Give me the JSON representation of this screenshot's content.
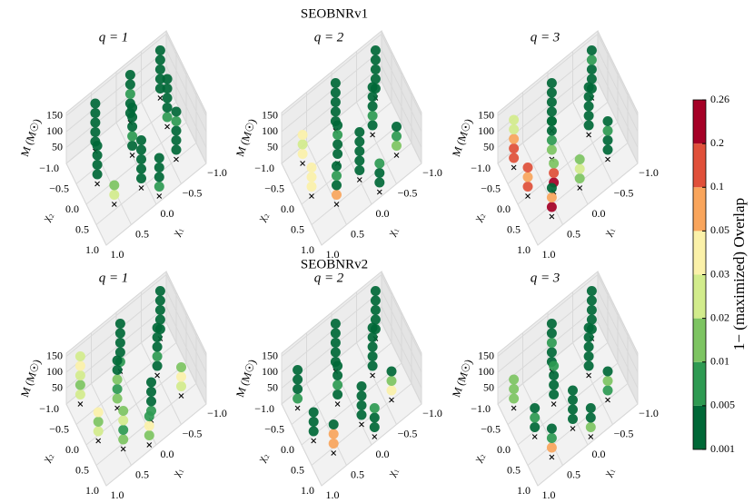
{
  "chart_data": {
    "type": "scatter3d",
    "suptitles": [
      "SEOBNRv1",
      "SEOBNRv2"
    ],
    "axes": {
      "xlabel": "χ₁",
      "ylabel": "χ₂",
      "zlabel": "M (M☉)",
      "xlim": [
        -1,
        1
      ],
      "ylim": [
        -1,
        1
      ],
      "zlim": [
        0,
        160
      ],
      "xticks": [
        {
          "value": -1,
          "label": "−1.0"
        },
        {
          "value": -0.5,
          "label": "−0.5"
        },
        {
          "value": 0,
          "label": "0.0"
        },
        0.5,
        {
          "value": 1,
          "label": "1.0"
        }
      ],
      "yticks": [
        {
          "value": -1,
          "label": "−1.0"
        },
        {
          "value": -0.5,
          "label": "−0.5"
        },
        {
          "value": 0,
          "label": "0.0"
        },
        0.5,
        {
          "value": 1,
          "label": "1.0"
        }
      ],
      "zticks": [
        50,
        100,
        150
      ],
      "grid": true
    },
    "M": [
      30,
      60,
      90,
      120,
      150
    ],
    "panels": [
      {
        "title": "q = 1",
        "columns": [
          {
            "chi1": -0.8,
            "chi2": -0.8,
            "overlap": [
              0.003,
              0.003,
              0.003,
              0.003,
              0.003
            ]
          },
          {
            "chi1": -0.2,
            "chi2": -0.8,
            "overlap": [
              0.003,
              0.003,
              0.007,
              0.003,
              0.003
            ]
          },
          {
            "chi1": 0.5,
            "chi2": -0.8,
            "overlap": [
              0.003,
              0.003,
              0.003,
              0.003,
              0.003
            ]
          },
          {
            "chi1": -0.7,
            "chi2": -0.2,
            "overlap": [
              0.007,
              0.003,
              0.003,
              0.003,
              0.003
            ]
          },
          {
            "chi1": 0,
            "chi2": -0.2,
            "overlap": [
              0.003,
              0.007,
              0.003,
              0.003,
              0.003
            ]
          },
          {
            "chi1": 0.7,
            "chi2": -0.2,
            "overlap": [
              0.003,
              0.003,
              0.003,
              0.003,
              null
            ]
          },
          {
            "chi1": -0.6,
            "chi2": 0.5,
            "overlap": [
              0.003,
              0.003,
              0.003,
              0.007,
              0.003
            ]
          },
          {
            "chi1": 0.1,
            "chi2": 0.5,
            "overlap": [
              0.003,
              0.003,
              0.003,
              0.003,
              0.003
            ]
          },
          {
            "chi1": 0.6,
            "chi2": 0.4,
            "overlap": [
              0.025,
              0.015,
              null,
              null,
              null
            ]
          },
          {
            "chi1": -0.1,
            "chi2": 0.9,
            "overlap": [
              0.007,
              0.003,
              0.003,
              0.003,
              null
            ]
          }
        ]
      },
      {
        "title": "q = 2",
        "columns": [
          {
            "chi1": -0.8,
            "chi2": -0.8,
            "overlap": [
              0.003,
              0.003,
              0.003,
              0.003,
              0.003
            ]
          },
          {
            "chi1": 0,
            "chi2": -0.8,
            "overlap": [
              0.003,
              0.003,
              0.003,
              0.003,
              0.003
            ]
          },
          {
            "chi1": 0.7,
            "chi2": -0.7,
            "overlap": [
              0.04,
              0.025,
              0.04,
              null,
              null
            ]
          },
          {
            "chi1": -0.5,
            "chi2": -0.2,
            "overlap": [
              0.003,
              0.007,
              0.003,
              0.003,
              0.003
            ]
          },
          {
            "chi1": 0.2,
            "chi2": -0.2,
            "overlap": [
              0.003,
              0.003,
              0.007,
              0.003,
              null
            ]
          },
          {
            "chi1": 0.8,
            "chi2": 0,
            "overlap": [
              0.04,
              0.04,
              0.04,
              null,
              null
            ]
          },
          {
            "chi1": -0.7,
            "chi2": 0.5,
            "overlap": [
              0.015,
              0.007,
              0.003,
              null,
              null
            ]
          },
          {
            "chi1": 0,
            "chi2": 0.4,
            "overlap": [
              0.003,
              0.003,
              0.003,
              0.003,
              0.003
            ]
          },
          {
            "chi1": 0.5,
            "chi2": 0.5,
            "overlap": [
              0.07,
              0.003,
              0.007,
              0.003,
              null
            ]
          },
          {
            "chi1": -0.2,
            "chi2": 0.9,
            "overlap": [
              0.003,
              0.003,
              0.007,
              null,
              null
            ]
          }
        ]
      },
      {
        "title": "q = 3",
        "columns": [
          {
            "chi1": -0.8,
            "chi2": -0.8,
            "overlap": [
              0.003,
              0.003,
              0.003,
              0.007,
              0.003
            ]
          },
          {
            "chi1": 0,
            "chi2": -0.8,
            "overlap": [
              0.007,
              0.003,
              0.003,
              0.003,
              0.003
            ]
          },
          {
            "chi1": 0.8,
            "chi2": -0.7,
            "overlap": [
              0.15,
              0.15,
              0.07,
              0.025,
              0.025
            ]
          },
          {
            "chi1": -0.5,
            "chi2": -0.2,
            "overlap": [
              0.003,
              0.003,
              0.003,
              0.003,
              0.003
            ]
          },
          {
            "chi1": 0.2,
            "chi2": -0.3,
            "overlap": [
              0.015,
              0.007,
              0.003,
              0.003,
              null
            ]
          },
          {
            "chi1": 0.8,
            "chi2": 0,
            "overlap": [
              0.15,
              0.07,
              0.15,
              null,
              null
            ]
          },
          {
            "chi1": 0.4,
            "chi2": 0.3,
            "overlap": [
              0.23,
              0.15,
              0.015,
              null,
              null
            ]
          },
          {
            "chi1": -0.6,
            "chi2": 0.5,
            "overlap": [
              0.003,
              0.003,
              0.007,
              0.003,
              null
            ]
          },
          {
            "chi1": 0,
            "chi2": 0.6,
            "overlap": [
              0.015,
              0.025,
              0.015,
              null,
              null
            ]
          },
          {
            "chi1": 0.6,
            "chi2": 0.7,
            "overlap": [
              0.23,
              0.07,
              0.003,
              null,
              null
            ]
          }
        ]
      },
      {
        "title": "q = 1",
        "columns": [
          {
            "chi1": -0.8,
            "chi2": -0.8,
            "overlap": [
              0.003,
              0.003,
              0.003,
              0.003,
              0.003
            ]
          },
          {
            "chi1": 0,
            "chi2": -0.8,
            "overlap": [
              0.007,
              0.003,
              0.003,
              0.003,
              0.003
            ]
          },
          {
            "chi1": 0.8,
            "chi2": -0.8,
            "overlap": [
              0.025,
              0.015,
              0.025,
              0.04,
              0.025
            ]
          },
          {
            "chi1": -0.5,
            "chi2": -0.2,
            "overlap": [
              0.003,
              0.007,
              0.003,
              0.003,
              0.003
            ]
          },
          {
            "chi1": 0.3,
            "chi2": -0.2,
            "overlap": [
              0.015,
              0.007,
              0.015,
              0.003,
              0.003
            ]
          },
          {
            "chi1": 0.8,
            "chi2": 0.1,
            "overlap": [
              0.025,
              0.015,
              0.04,
              null,
              null
            ]
          },
          {
            "chi1": -0.7,
            "chi2": 0.5,
            "overlap": [
              0.025,
              0.04,
              0.015,
              null,
              null
            ]
          },
          {
            "chi1": -0.1,
            "chi2": 0.5,
            "overlap": [
              0.007,
              0.003,
              0.003,
              0.003,
              null
            ]
          },
          {
            "chi1": 0.5,
            "chi2": 0.6,
            "overlap": [
              0.015,
              0.007,
              0.025,
              0.015,
              null
            ]
          },
          {
            "chi1": 0.1,
            "chi2": 0.9,
            "overlap": [
              0.015,
              0.04,
              0.007,
              null,
              null
            ]
          }
        ]
      },
      {
        "title": "q = 2",
        "columns": [
          {
            "chi1": -0.8,
            "chi2": -0.8,
            "overlap": [
              0.003,
              0.003,
              0.003,
              0.003,
              0.003
            ]
          },
          {
            "chi1": 0,
            "chi2": -0.8,
            "overlap": [
              0.003,
              0.003,
              0.003,
              0.003,
              0.003
            ]
          },
          {
            "chi1": 0.8,
            "chi2": -0.7,
            "overlap": [
              0.007,
              0.003,
              0.003,
              0.003,
              null
            ]
          },
          {
            "chi1": -0.5,
            "chi2": -0.2,
            "overlap": [
              0.003,
              0.003,
              0.003,
              0.003,
              0.003
            ]
          },
          {
            "chi1": 0.2,
            "chi2": -0.2,
            "overlap": [
              0.003,
              0.007,
              0.003,
              0.003,
              null
            ]
          },
          {
            "chi1": 0.8,
            "chi2": 0.1,
            "overlap": [
              0.003,
              0.003,
              0.003,
              null,
              null
            ]
          },
          {
            "chi1": -0.6,
            "chi2": 0.5,
            "overlap": [
              0.04,
              0.015,
              0.003,
              null,
              null
            ]
          },
          {
            "chi1": 0,
            "chi2": 0.5,
            "overlap": [
              0.003,
              0.003,
              0.003,
              0.003,
              null
            ]
          },
          {
            "chi1": 0.6,
            "chi2": 0.6,
            "overlap": [
              0.07,
              0.07,
              0.003,
              null,
              null
            ]
          },
          {
            "chi1": -0.1,
            "chi2": 0.9,
            "overlap": [
              0.003,
              0.003,
              0.007,
              null,
              null
            ]
          }
        ]
      },
      {
        "title": "q = 3",
        "columns": [
          {
            "chi1": -0.8,
            "chi2": -0.8,
            "overlap": [
              0.003,
              0.003,
              0.003,
              0.003,
              0.003
            ]
          },
          {
            "chi1": 0,
            "chi2": -0.8,
            "overlap": [
              0.003,
              0.003,
              0.007,
              0.003,
              0.003
            ]
          },
          {
            "chi1": 0.8,
            "chi2": -0.7,
            "overlap": [
              0.015,
              0.015,
              0.015,
              null,
              null
            ]
          },
          {
            "chi1": -0.5,
            "chi2": -0.2,
            "overlap": [
              0.003,
              0.003,
              0.003,
              0.003,
              0.003
            ]
          },
          {
            "chi1": 0.2,
            "chi2": -0.2,
            "overlap": [
              0.003,
              0.003,
              0.003,
              0.007,
              null
            ]
          },
          {
            "chi1": 0.7,
            "chi2": 0.1,
            "overlap": [
              0.003,
              0.007,
              0.003,
              null,
              null
            ]
          },
          {
            "chi1": -0.6,
            "chi2": 0.5,
            "overlap": [
              0.007,
              0.015,
              0.003,
              null,
              null
            ]
          },
          {
            "chi1": 0.1,
            "chi2": 0.5,
            "overlap": [
              0.003,
              0.003,
              0.003,
              0.003,
              null
            ]
          },
          {
            "chi1": 0.6,
            "chi2": 0.7,
            "overlap": [
              0.07,
              0.007,
              0.003,
              null,
              null
            ]
          },
          {
            "chi1": -0.1,
            "chi2": 0.9,
            "overlap": [
              0.015,
              0.003,
              0.003,
              null,
              null
            ]
          }
        ]
      }
    ],
    "colorbar": {
      "label": "1− (maximized) Overlap",
      "ticks": [
        0.001,
        0.005,
        0.01,
        0.02,
        0.03,
        0.05,
        0.1,
        0.2,
        0.26
      ],
      "colors": [
        "#006837",
        "#2e9a52",
        "#7dc462",
        "#d2ec8c",
        "#fbf1a9",
        "#f9a55c",
        "#e0503a",
        "#a50026"
      ]
    }
  }
}
